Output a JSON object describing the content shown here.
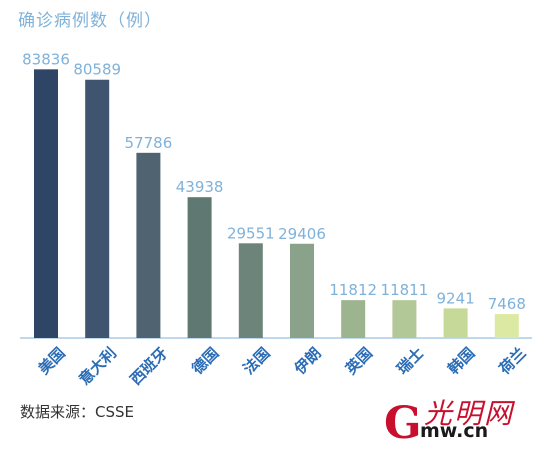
{
  "title": "确诊病例数（例）",
  "source": "数据来源：CSSE",
  "logo": {
    "letter": "G",
    "chinese": "光明网",
    "domain": "mw.cn"
  },
  "chart_data": {
    "type": "bar",
    "categories": [
      "美国",
      "意大利",
      "西班牙",
      "德国",
      "法国",
      "伊朗",
      "英国",
      "瑞士",
      "韩国",
      "荷兰"
    ],
    "values": [
      83836,
      80589,
      57786,
      43938,
      29551,
      29406,
      11812,
      11811,
      9241,
      7468
    ],
    "colors": [
      "#2e4566",
      "#3f546e",
      "#4f6470",
      "#607872",
      "#6c8479",
      "#8aa18a",
      "#9db58f",
      "#b2c896",
      "#c6d999",
      "#dbe9a3"
    ],
    "value_label_color": "#7fb2da",
    "category_label_color": "#2a6cb6",
    "ylim": [
      0,
      88000
    ],
    "grid": false
  }
}
